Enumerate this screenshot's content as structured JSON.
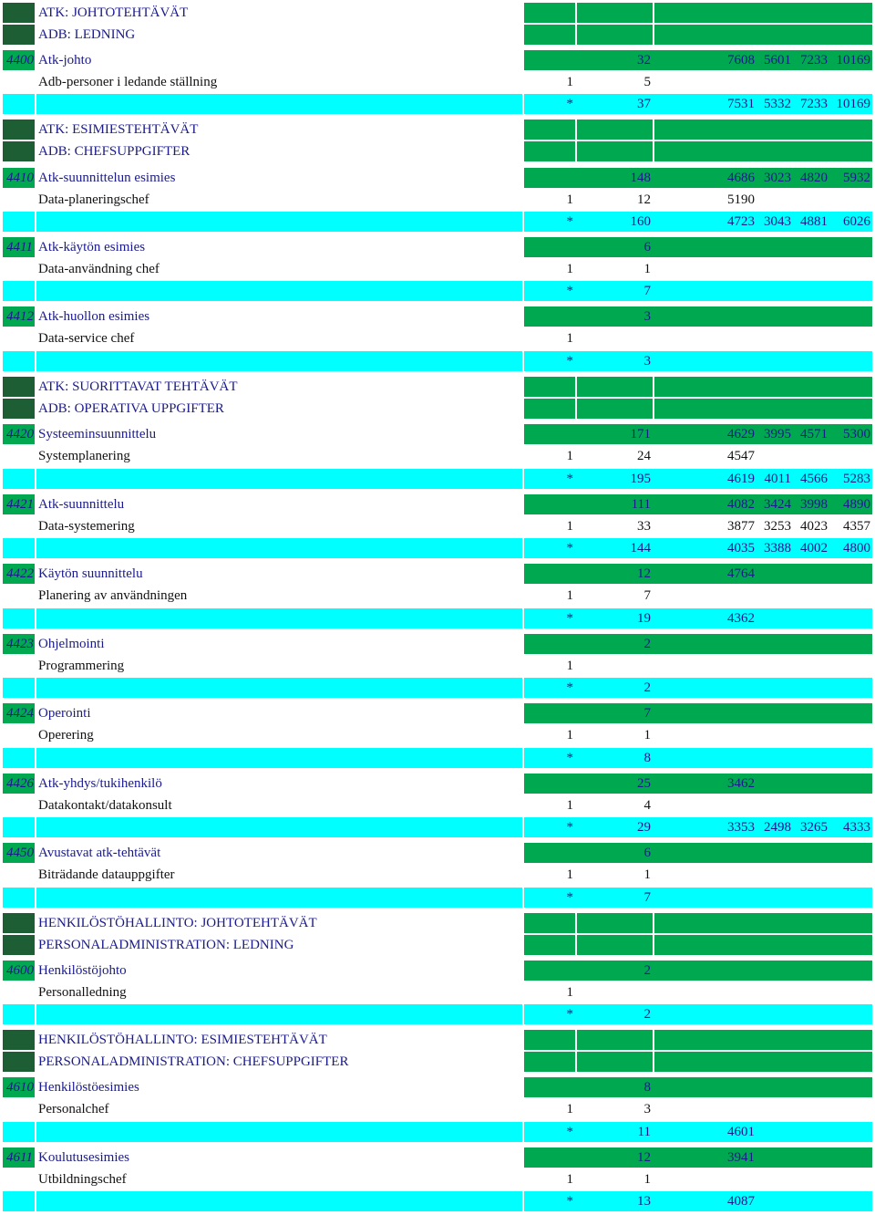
{
  "colors": {
    "band_green": "#00a94f",
    "band_dark": "#1e5e35",
    "band_cyan": "#00ffff",
    "text_blue": "#1a1a8c",
    "text_black": "#111111"
  },
  "rows": [
    {
      "type": "header",
      "name": "ATK: JOHTOTEHTÄVÄT"
    },
    {
      "type": "header",
      "name": "ADB: LEDNING"
    },
    {
      "type": "main",
      "code": "4400",
      "name": "Atk-johto",
      "v4": "32",
      "v6": "7608",
      "v7": "5601",
      "v8": "7233",
      "v9": "10169"
    },
    {
      "type": "sub",
      "name": "Adb-personer i ledande ställning",
      "v3": "1",
      "v4": "5"
    },
    {
      "type": "total",
      "v3": "*",
      "v4": "37",
      "v6": "7531",
      "v7": "5332",
      "v8": "7233",
      "v9": "10169"
    },
    {
      "type": "header",
      "name": "ATK: ESIMIESTEHTÄVÄT"
    },
    {
      "type": "header",
      "name": "ADB: CHEFSUPPGIFTER"
    },
    {
      "type": "main",
      "code": "4410",
      "name": "Atk-suunnittelun esimies",
      "v4": "148",
      "v6": "4686",
      "v7": "3023",
      "v8": "4820",
      "v9": "5932"
    },
    {
      "type": "sub",
      "name": "Data-planeringschef",
      "v3": "1",
      "v4": "12",
      "v6": "5190"
    },
    {
      "type": "total",
      "v3": "*",
      "v4": "160",
      "v6": "4723",
      "v7": "3043",
      "v8": "4881",
      "v9": "6026"
    },
    {
      "type": "main",
      "code": "4411",
      "name": "Atk-käytön esimies",
      "v4": "6"
    },
    {
      "type": "sub",
      "name": "Data-användning chef",
      "v3": "1",
      "v4": "1"
    },
    {
      "type": "total",
      "v3": "*",
      "v4": "7"
    },
    {
      "type": "main",
      "code": "4412",
      "name": "Atk-huollon esimies",
      "v4": "3"
    },
    {
      "type": "sub",
      "name": "Data-service chef",
      "v3": "1"
    },
    {
      "type": "total",
      "v3": "*",
      "v4": "3"
    },
    {
      "type": "header",
      "name": "ATK: SUORITTAVAT TEHTÄVÄT"
    },
    {
      "type": "header",
      "name": "ADB: OPERATIVA UPPGIFTER"
    },
    {
      "type": "main",
      "code": "4420",
      "name": "Systeeminsuunnittelu",
      "v4": "171",
      "v6": "4629",
      "v7": "3995",
      "v8": "4571",
      "v9": "5300"
    },
    {
      "type": "sub",
      "name": "Systemplanering",
      "v3": "1",
      "v4": "24",
      "v6": "4547"
    },
    {
      "type": "total",
      "v3": "*",
      "v4": "195",
      "v6": "4619",
      "v7": "4011",
      "v8": "4566",
      "v9": "5283"
    },
    {
      "type": "main",
      "code": "4421",
      "name": "Atk-suunnittelu",
      "v4": "111",
      "v6": "4082",
      "v7": "3424",
      "v8": "3998",
      "v9": "4890"
    },
    {
      "type": "sub",
      "name": "Data-systemering",
      "v3": "1",
      "v4": "33",
      "v6": "3877",
      "v7": "3253",
      "v8": "4023",
      "v9": "4357"
    },
    {
      "type": "total",
      "v3": "*",
      "v4": "144",
      "v6": "4035",
      "v7": "3388",
      "v8": "4002",
      "v9": "4800"
    },
    {
      "type": "main",
      "code": "4422",
      "name": "Käytön suunnittelu",
      "v4": "12",
      "v6": "4764"
    },
    {
      "type": "sub",
      "name": "Planering av användningen",
      "v3": "1",
      "v4": "7"
    },
    {
      "type": "total",
      "v3": "*",
      "v4": "19",
      "v6": "4362"
    },
    {
      "type": "main",
      "code": "4423",
      "name": "Ohjelmointi",
      "v4": "2"
    },
    {
      "type": "sub",
      "name": "Programmering",
      "v3": "1"
    },
    {
      "type": "total",
      "v3": "*",
      "v4": "2"
    },
    {
      "type": "main",
      "code": "4424",
      "name": "Operointi",
      "v4": "7"
    },
    {
      "type": "sub",
      "name": "Operering",
      "v3": "1",
      "v4": "1"
    },
    {
      "type": "total",
      "v3": "*",
      "v4": "8"
    },
    {
      "type": "main",
      "code": "4426",
      "name": "Atk-yhdys/tukihenkilö",
      "v4": "25",
      "v6": "3462"
    },
    {
      "type": "sub",
      "name": "Datakontakt/datakonsult",
      "v3": "1",
      "v4": "4"
    },
    {
      "type": "total",
      "v3": "*",
      "v4": "29",
      "v6": "3353",
      "v7": "2498",
      "v8": "3265",
      "v9": "4333"
    },
    {
      "type": "main",
      "code": "4450",
      "name": "Avustavat atk-tehtävät",
      "v4": "6"
    },
    {
      "type": "sub",
      "name": "Biträdande datauppgifter",
      "v3": "1",
      "v4": "1"
    },
    {
      "type": "total",
      "v3": "*",
      "v4": "7"
    },
    {
      "type": "header",
      "name": "HENKILÖSTÖHALLINTO: JOHTOTEHTÄVÄT"
    },
    {
      "type": "header",
      "name": "PERSONALADMINISTRATION: LEDNING"
    },
    {
      "type": "main",
      "code": "4600",
      "name": "Henkilöstöjohto",
      "v4": "2"
    },
    {
      "type": "sub",
      "name": "Personalledning",
      "v3": "1"
    },
    {
      "type": "total",
      "v3": "*",
      "v4": "2"
    },
    {
      "type": "header",
      "name": "HENKILÖSTÖHALLINTO: ESIMIESTEHTÄVÄT"
    },
    {
      "type": "header",
      "name": "PERSONALADMINISTRATION: CHEFSUPPGIFTER"
    },
    {
      "type": "main",
      "code": "4610",
      "name": "Henkilöstöesimies",
      "v4": "8"
    },
    {
      "type": "sub",
      "name": "Personalchef",
      "v3": "1",
      "v4": "3"
    },
    {
      "type": "total",
      "v3": "*",
      "v4": "11",
      "v6": "4601"
    },
    {
      "type": "main",
      "code": "4611",
      "name": "Koulutusesimies",
      "v4": "12",
      "v6": "3941"
    },
    {
      "type": "sub",
      "name": "Utbildningschef",
      "v3": "1",
      "v4": "1"
    },
    {
      "type": "total",
      "v3": "*",
      "v4": "13",
      "v6": "4087"
    }
  ]
}
